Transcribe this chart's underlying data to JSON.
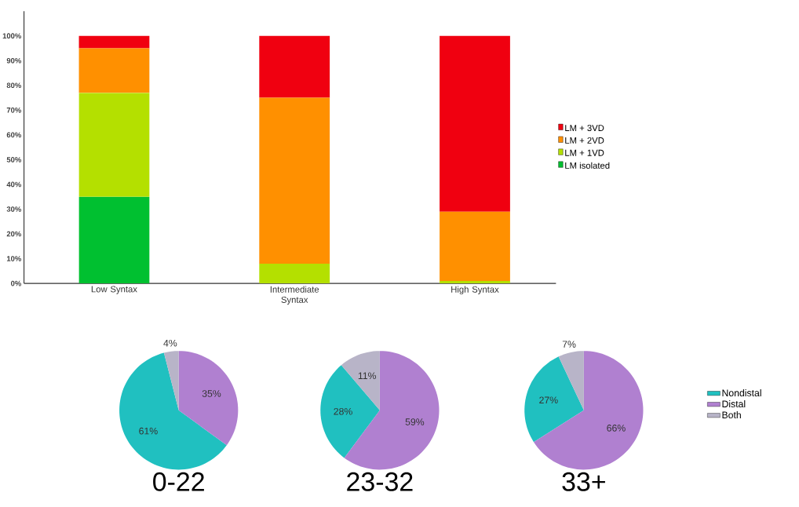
{
  "chart_data": [
    {
      "type": "bar",
      "stacked": true,
      "legend": "right",
      "categories": [
        "Low Syntax",
        "Intermediate Syntax",
        "High Syntax"
      ],
      "series": [
        {
          "name": "LM isolated",
          "color": "#00c030",
          "values": [
            35,
            0,
            0
          ]
        },
        {
          "name": "LM + 1VD",
          "color": "#b4e000",
          "values": [
            42,
            8,
            1
          ]
        },
        {
          "name": "LM + 2VD",
          "color": "#ff9000",
          "values": [
            18,
            67,
            28
          ]
        },
        {
          "name": "LM + 3VD",
          "color": "#f00010",
          "values": [
            5,
            25,
            71
          ]
        }
      ],
      "ylim": [
        0,
        110
      ],
      "yticks": [
        {
          "value": 0,
          "label": "0%"
        },
        {
          "value": 10,
          "label": "10%"
        },
        {
          "value": 20,
          "label": "20%"
        },
        {
          "value": 30,
          "label": "30%"
        },
        {
          "value": 40,
          "label": "40%"
        },
        {
          "value": 50,
          "label": "50%"
        },
        {
          "value": 60,
          "label": "60%"
        },
        {
          "value": 70,
          "label": "70%"
        },
        {
          "value": 80,
          "label": "80%"
        },
        {
          "value": 90,
          "label": "90%"
        },
        {
          "value": 100,
          "label": "100%"
        }
      ]
    },
    {
      "type": "pie",
      "title": "0-22",
      "values": [
        61,
        35,
        4
      ],
      "colors": [
        "#20c0c0",
        "#b080d0",
        "#b8b4c8"
      ],
      "value_labels": [
        "61%",
        "35%",
        "4%"
      ]
    },
    {
      "type": "pie",
      "title": "23-32",
      "values": [
        28,
        59,
        11
      ],
      "colors": [
        "#20c0c0",
        "#b080d0",
        "#b8b4c8"
      ],
      "value_labels": [
        "28%",
        "59%",
        "11%"
      ]
    },
    {
      "type": "pie",
      "title": "33+",
      "legend": "right",
      "categories": [
        "Nondistal",
        "Distal",
        "Both"
      ],
      "values": [
        27,
        66,
        7
      ],
      "colors": [
        "#20c0c0",
        "#b080d0",
        "#b8b4c8"
      ],
      "value_labels": [
        "27%",
        "66%",
        "7%"
      ]
    }
  ]
}
